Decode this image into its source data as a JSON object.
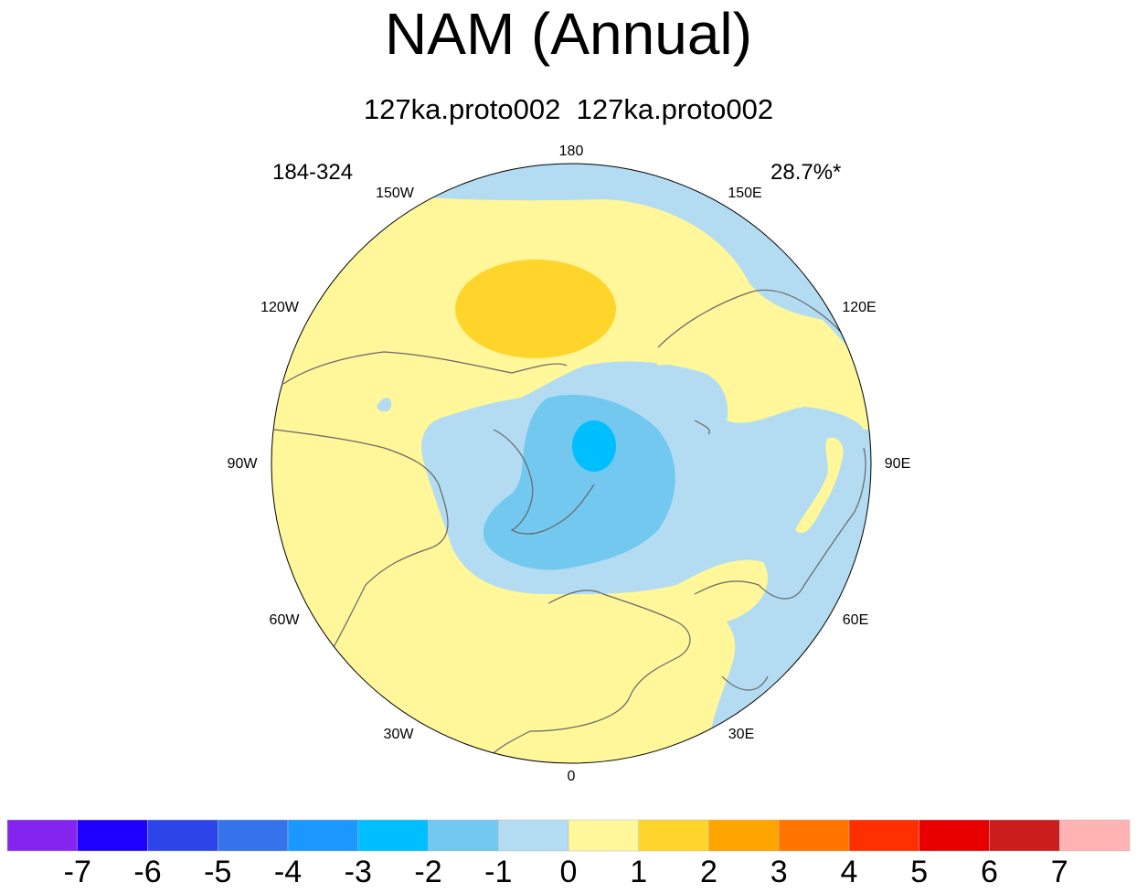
{
  "title": "NAM (Annual)",
  "subtitle": "127ka.proto002  127ka.proto002",
  "left_corner": "184-324",
  "right_corner": "28.7%*",
  "longitude_labels": {
    "lon_180": "180",
    "lon_150e": "150E",
    "lon_120e": "120E",
    "lon_90e": "90E",
    "lon_60e": "60E",
    "lon_30e": "30E",
    "lon_0": "0",
    "lon_30w": "30W",
    "lon_60w": "60W",
    "lon_90w": "90W",
    "lon_120w": "120W",
    "lon_150w": "150W"
  },
  "field_colors": {
    "neutral_pos": "#fff799",
    "pos_1_2": "#ffd42b",
    "neutral_neg": "#b3dcf2",
    "neg_1_2": "#73c8f0",
    "neg_2_3": "#00bfff",
    "coastline": "#666666"
  },
  "colorbar": {
    "colors": [
      "#8325ee",
      "#1d00ff",
      "#2c45e8",
      "#3473ea",
      "#1b98ff",
      "#00bfff",
      "#73c8f0",
      "#b3dcf2",
      "#fff799",
      "#ffd42b",
      "#ffa500",
      "#ff7500",
      "#ff2f00",
      "#e80000",
      "#cc1d1d",
      "#ffb3b3"
    ],
    "labels": [
      "-7",
      "-6",
      "-5",
      "-4",
      "-3",
      "-2",
      "-1",
      "0",
      "1",
      "2",
      "3",
      "4",
      "5",
      "6",
      "7"
    ]
  }
}
